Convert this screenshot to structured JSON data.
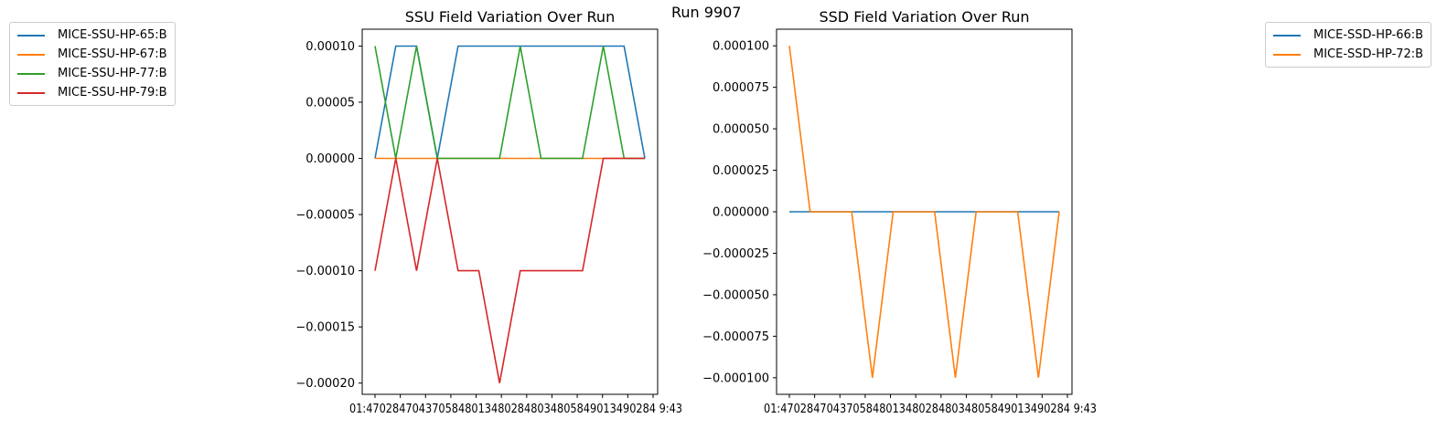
{
  "figure": {
    "title": "Run 9907"
  },
  "chart_data": [
    {
      "type": "line",
      "title": "SSU Field Variation Over Run",
      "xlabel": "",
      "ylabel": "",
      "ylim": [
        -0.00021,
        0.000115
      ],
      "yticks": [
        "0.00010",
        "0.00005",
        "0.00000",
        "−0.00005",
        "−0.00010",
        "−0.00015",
        "−0.00020"
      ],
      "ytick_values": [
        0.0001,
        5e-05,
        0,
        -5e-05,
        -0.0001,
        -0.00015,
        -0.0002
      ],
      "xtick_labels": [
        "01:47:02",
        "01:47:18",
        "01:47:34",
        "01:47:50",
        "01:48:06",
        "01:48:13",
        "01:48:29",
        "01:48:45",
        "01:49:01",
        "01:49:13",
        "01:49:28",
        "01:49:43"
      ],
      "xtick_label_text": "01:47028470437058480134802848034805849013490284 9:43",
      "grid": false,
      "legend_position": "outside-left",
      "series": [
        {
          "name": "MICE-SSU-HP-65:B",
          "color": "#1f77b4",
          "values": [
            0,
            0.0001,
            0.0001,
            0,
            0.0001,
            0.0001,
            0.0001,
            0.0001,
            0.0001,
            0.0001,
            0.0001,
            0.0001,
            0.0001,
            0
          ]
        },
        {
          "name": "MICE-SSU-HP-67:B",
          "color": "#ff7f0e",
          "values": [
            0,
            0,
            0,
            0,
            0,
            0,
            0,
            0,
            0,
            0,
            0,
            0,
            0,
            0
          ]
        },
        {
          "name": "MICE-SSU-HP-77:B",
          "color": "#2ca02c",
          "values": [
            0.0001,
            0,
            0.0001,
            0,
            0,
            0,
            0,
            0.0001,
            0,
            0,
            0,
            0.0001,
            0,
            0
          ]
        },
        {
          "name": "MICE-SSU-HP-79:B",
          "color": "#d62728",
          "values": [
            -0.0001,
            0,
            -0.0001,
            0,
            -0.0001,
            -0.0001,
            -0.0002,
            -0.0001,
            -0.0001,
            -0.0001,
            -0.0001,
            0,
            0,
            0
          ]
        }
      ]
    },
    {
      "type": "line",
      "title": "SSD Field Variation Over Run",
      "xlabel": "",
      "ylabel": "",
      "ylim": [
        -0.00011,
        0.00011
      ],
      "yticks": [
        "0.000100",
        "0.000075",
        "0.000050",
        "0.000025",
        "0.000000",
        "−0.000025",
        "−0.000050",
        "−0.000075",
        "−0.000100"
      ],
      "ytick_values": [
        0.0001,
        7.5e-05,
        5e-05,
        2.5e-05,
        0,
        -2.5e-05,
        -5e-05,
        -7.5e-05,
        -0.0001
      ],
      "xtick_labels": [
        "01:47:02",
        "01:47:18",
        "01:47:34",
        "01:47:50",
        "01:48:06",
        "01:48:13",
        "01:48:29",
        "01:48:45",
        "01:49:01",
        "01:49:13",
        "01:49:28",
        "01:49:43"
      ],
      "xtick_label_text": "01:47028470437058480134802848034805849013490284 9:43",
      "grid": false,
      "legend_position": "outside-right",
      "series": [
        {
          "name": "MICE-SSD-HP-66:B",
          "color": "#1f77b4",
          "values": [
            0,
            0,
            0,
            0,
            0,
            0,
            0,
            0,
            0,
            0,
            0,
            0,
            0,
            0
          ]
        },
        {
          "name": "MICE-SSD-HP-72:B",
          "color": "#ff7f0e",
          "values": [
            0.0001,
            0,
            0,
            0,
            -0.0001,
            0,
            0,
            0,
            -0.0001,
            0,
            0,
            0,
            -0.0001,
            0
          ]
        }
      ]
    }
  ]
}
